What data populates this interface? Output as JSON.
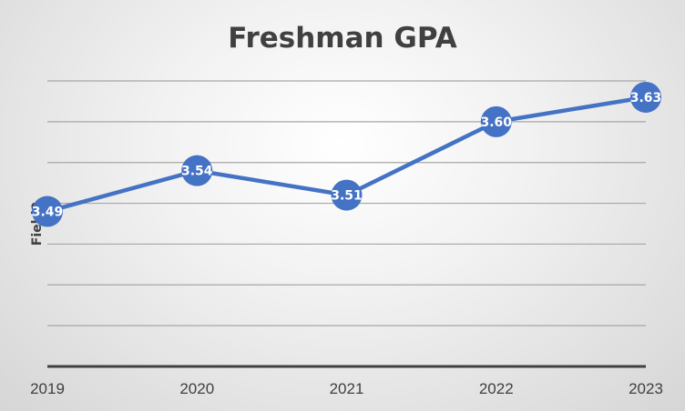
{
  "chart_data": {
    "type": "line",
    "title": "Freshman GPA",
    "xlabel": "",
    "ylabel": "Field2",
    "categories": [
      "2019",
      "2020",
      "2021",
      "2022",
      "2023"
    ],
    "series": [
      {
        "values": [
          3.49,
          3.54,
          3.51,
          3.6,
          3.63
        ]
      }
    ],
    "data_labels": [
      "3.49",
      "3.54",
      "3.51",
      "3.60",
      "3.63"
    ],
    "ylim": [
      3.3,
      3.65
    ],
    "y_gridlines": [
      3.35,
      3.4,
      3.45,
      3.5,
      3.55,
      3.6,
      3.65
    ],
    "grid": true,
    "show_y_tick_labels": false,
    "legend": "none",
    "colors": {
      "line": "#4472C4",
      "marker": "#4472C4",
      "label_text": "#FFFFFF",
      "gridline": "#A6A6A6",
      "axis_line": "#404040",
      "text": "#404040"
    }
  }
}
